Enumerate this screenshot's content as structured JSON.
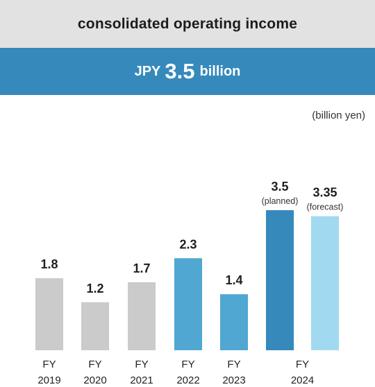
{
  "header": {
    "title": "consolidated operating income",
    "headline_prefix": "JPY",
    "headline_value": "3.5",
    "headline_suffix": "billion"
  },
  "units_label": "(billion yen)",
  "colors": {
    "past": "#cbcbcb",
    "recent": "#4fa7d2",
    "planned": "#3689bb",
    "forecast": "#a1daf0"
  },
  "chart_data": {
    "type": "bar",
    "title": "consolidated operating income",
    "ylabel": "(billion yen)",
    "ylim": [
      0,
      4.0
    ],
    "grid": false,
    "legend": "none",
    "bars": [
      {
        "category_top": "FY",
        "category_bottom": "2019",
        "value": 1.8,
        "label": "1.8",
        "note": "",
        "color": "past"
      },
      {
        "category_top": "FY",
        "category_bottom": "2020",
        "value": 1.2,
        "label": "1.2",
        "note": "",
        "color": "past"
      },
      {
        "category_top": "FY",
        "category_bottom": "2021",
        "value": 1.7,
        "label": "1.7",
        "note": "",
        "color": "past"
      },
      {
        "category_top": "FY",
        "category_bottom": "2022",
        "value": 2.3,
        "label": "2.3",
        "note": "",
        "color": "recent"
      },
      {
        "category_top": "FY",
        "category_bottom": "2023",
        "value": 1.4,
        "label": "1.4",
        "note": "",
        "color": "recent"
      },
      {
        "category_top": "",
        "category_bottom": "",
        "value": 3.5,
        "label": "3.5",
        "note": "(planned)",
        "color": "planned"
      },
      {
        "category_top": "",
        "category_bottom": "",
        "value": 3.35,
        "label": "3.35",
        "note": "(forecast)",
        "color": "forecast"
      }
    ],
    "group_labels": [
      {
        "top": "FY",
        "bottom": "2024",
        "spans": [
          5,
          6
        ]
      }
    ]
  }
}
